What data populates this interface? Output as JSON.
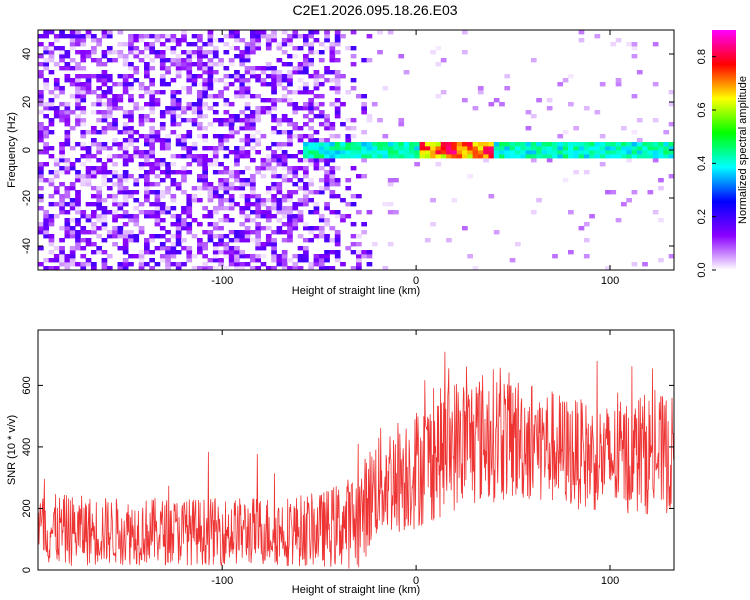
{
  "title": "C2E1.2026.095.18.26.E03",
  "chart_data": [
    {
      "type": "heatmap",
      "xlabel": "Height of straight line (km)",
      "ylabel": "Frequency (Hz)",
      "xlim": [
        -195,
        133
      ],
      "ylim": [
        -50,
        50
      ],
      "xticks": [
        -100,
        0,
        100
      ],
      "yticks": [
        -40,
        -20,
        0,
        20,
        40
      ],
      "colorbar": {
        "label": "Normalized spectral amplitude",
        "range": [
          0.0,
          0.9
        ],
        "ticks": [
          "0.0",
          "0.2",
          "0.4",
          "0.6",
          "0.8"
        ],
        "colors": [
          "#ffffff",
          "#8b00ff",
          "#0000ff",
          "#00ffff",
          "#00ff00",
          "#ffff00",
          "#ff0000",
          "#ff00ff"
        ]
      },
      "features": {
        "noise_region_x": [
          -195,
          -25
        ],
        "noise_level": [
          0.0,
          0.2
        ],
        "dc_band_center_hz": 0,
        "dc_band_start_x": -60,
        "dc_band_level": 0.35,
        "dc_band_peak_x": [
          0,
          40
        ],
        "dc_band_peak_level": 0.85
      }
    },
    {
      "type": "line",
      "xlabel": "Height of straight line (km)",
      "ylabel": "SNR (10 * v/v)",
      "xlim": [
        -195,
        133
      ],
      "ylim": [
        0,
        780
      ],
      "xticks": [
        -100,
        0,
        100
      ],
      "yticks": [
        0,
        200,
        400,
        600
      ],
      "color": "#ee3333",
      "envelope": {
        "x": [
          -195,
          -150,
          -100,
          -50,
          -30,
          -20,
          0,
          10,
          20,
          40,
          60,
          80,
          100,
          120,
          133
        ],
        "mean": [
          130,
          125,
          125,
          130,
          160,
          280,
          330,
          370,
          410,
          440,
          420,
          380,
          360,
          380,
          370
        ],
        "half": [
          120,
          110,
          110,
          120,
          160,
          180,
          200,
          210,
          220,
          220,
          200,
          180,
          180,
          200,
          190
        ],
        "peak": [
          380,
          420,
          380,
          420,
          470,
          520,
          610,
          680,
          780,
          700,
          640,
          600,
          720,
          670,
          620
        ]
      }
    }
  ]
}
